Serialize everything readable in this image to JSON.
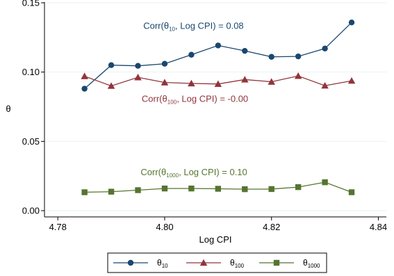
{
  "chart_data": {
    "type": "line",
    "title": "",
    "xlabel": "Log CPI",
    "ylabel": "θ",
    "xlim": [
      4.7775,
      4.8415
    ],
    "ylim": [
      -0.0045,
      0.1505
    ],
    "xticks": [
      {
        "value": 4.78,
        "label": "4.78"
      },
      {
        "value": 4.8,
        "label": "4.80"
      },
      {
        "value": 4.82,
        "label": "4.82"
      },
      {
        "value": 4.84,
        "label": "4.84"
      }
    ],
    "yticks": [
      {
        "value": 0.0,
        "label": "0.00"
      },
      {
        "value": 0.05,
        "label": "0.05"
      },
      {
        "value": 0.1,
        "label": "0.10"
      },
      {
        "value": 0.15,
        "label": "0.15"
      }
    ],
    "grid": true,
    "legend": "bottom",
    "x": [
      4.785,
      4.79,
      4.795,
      4.8,
      4.805,
      4.81,
      4.815,
      4.82,
      4.825,
      4.83,
      4.835
    ],
    "series": [
      {
        "name": "θ",
        "sub": "10",
        "color": "#1a476f",
        "marker": "circle",
        "values": [
          0.088,
          0.105,
          0.1045,
          0.106,
          0.1125,
          0.1192,
          0.1153,
          0.111,
          0.1113,
          0.117,
          0.1358
        ]
      },
      {
        "name": "θ",
        "sub": "100",
        "color": "#90353b",
        "marker": "triangle",
        "values": [
          0.097,
          0.09,
          0.0962,
          0.0925,
          0.0918,
          0.0914,
          0.0946,
          0.093,
          0.0972,
          0.0902,
          0.0937
        ]
      },
      {
        "name": "θ",
        "sub": "1000",
        "color": "#55752f",
        "marker": "square",
        "values": [
          0.0133,
          0.0137,
          0.0148,
          0.016,
          0.016,
          0.0158,
          0.0155,
          0.0156,
          0.017,
          0.0205,
          0.0133
        ]
      }
    ],
    "annotations": [
      {
        "pre": "Corr(θ",
        "sub": "10",
        "post": ", Log CPI) = 0.08",
        "color": "#1a476f",
        "x": 4.796,
        "y": 0.1313
      },
      {
        "pre": "Corr(θ",
        "sub": "100",
        "post": ", Log CPI) = -0.00",
        "color": "#90353b",
        "x": 4.7957,
        "y": 0.0786
      },
      {
        "pre": "Corr(θ",
        "sub": "1000",
        "post": ", Log CPI) = 0.10",
        "color": "#55752f",
        "x": 4.7955,
        "y": 0.0255
      }
    ]
  }
}
